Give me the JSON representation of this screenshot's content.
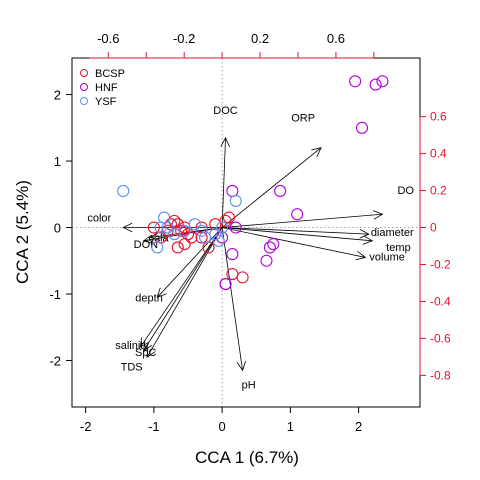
{
  "chart_data": {
    "type": "scatter",
    "title": "",
    "xlabel": "CCA 1 (6.7%)",
    "ylabel": "CCA 2 (5.4%)",
    "xlim": [
      -2.2,
      2.9
    ],
    "ylim": [
      -2.7,
      2.55
    ],
    "x_ticks": [
      "-2",
      "-1",
      "0",
      "1",
      "2"
    ],
    "y_ticks": [
      "-2",
      "-1",
      "0",
      "1",
      "2"
    ],
    "biplot_axis_ticks": {
      "top": [
        "-0.6",
        "-0.2",
        "0.2",
        "0.6"
      ],
      "right": [
        "0.6",
        "0.4",
        "0.2",
        "0",
        "-0.2",
        "-0.4",
        "-0.6",
        "-0.8"
      ]
    },
    "legend": {
      "position": "top-left",
      "entries": [
        {
          "name": "BCSP",
          "color": "#e8112d"
        },
        {
          "name": "HNF",
          "color": "#b000e0"
        },
        {
          "name": "YSF",
          "color": "#5b8ff0"
        }
      ]
    },
    "series": [
      {
        "name": "BCSP",
        "color": "#e8112d",
        "points": [
          [
            -0.7,
            0.1
          ],
          [
            -0.75,
            0.05
          ],
          [
            -0.65,
            0.05
          ],
          [
            -0.55,
            0.0
          ],
          [
            -0.6,
            -0.05
          ],
          [
            -0.5,
            -0.1
          ],
          [
            -0.45,
            -0.15
          ],
          [
            -0.55,
            -0.25
          ],
          [
            -0.65,
            -0.3
          ],
          [
            -0.8,
            -0.05
          ],
          [
            -0.9,
            -0.15
          ],
          [
            -1.0,
            0.0
          ],
          [
            -0.3,
            -0.15
          ],
          [
            -0.2,
            -0.3
          ],
          [
            -0.1,
            0.05
          ],
          [
            -0.3,
            0.0
          ],
          [
            0.05,
            0.1
          ],
          [
            0.1,
            0.15
          ],
          [
            0.3,
            -0.75
          ],
          [
            0.15,
            -0.7
          ],
          [
            0.05,
            -0.85
          ]
        ]
      },
      {
        "name": "HNF",
        "color": "#b000e0",
        "points": [
          [
            2.05,
            1.5
          ],
          [
            1.95,
            2.2
          ],
          [
            2.35,
            2.2
          ],
          [
            2.25,
            2.15
          ],
          [
            0.85,
            0.55
          ],
          [
            0.15,
            0.55
          ],
          [
            1.1,
            0.2
          ],
          [
            0.75,
            -0.25
          ],
          [
            0.7,
            -0.3
          ],
          [
            0.65,
            -0.5
          ],
          [
            0.15,
            -0.4
          ],
          [
            0.0,
            -0.15
          ],
          [
            0.05,
            -0.85
          ],
          [
            0.2,
            0.0
          ]
        ]
      },
      {
        "name": "YSF",
        "color": "#5b8ff0",
        "points": [
          [
            -1.45,
            0.55
          ],
          [
            -0.85,
            0.15
          ],
          [
            -0.9,
            0.0
          ],
          [
            -0.95,
            -0.3
          ],
          [
            -0.8,
            0.0
          ],
          [
            -0.7,
            -0.1
          ],
          [
            -0.4,
            0.05
          ],
          [
            -0.3,
            -0.05
          ],
          [
            -0.25,
            -0.15
          ],
          [
            -0.1,
            -0.1
          ],
          [
            -0.05,
            -0.2
          ],
          [
            -0.55,
            -0.05
          ],
          [
            0.2,
            0.4
          ],
          [
            0.0,
            0.0
          ]
        ]
      }
    ],
    "vectors": [
      {
        "label": "DOC",
        "x": 0.05,
        "y": 1.35
      },
      {
        "label": "ORP",
        "x": 1.45,
        "y": 1.2
      },
      {
        "label": "DO",
        "x": 2.35,
        "y": 0.2
      },
      {
        "label": "diameter",
        "x": 2.15,
        "y": -0.1
      },
      {
        "label": "temp",
        "x": 2.2,
        "y": -0.2
      },
      {
        "label": "volume",
        "x": 2.1,
        "y": -0.45
      },
      {
        "label": "color",
        "x": -1.45,
        "y": 0.0
      },
      {
        "label": "chla",
        "x": -1.05,
        "y": -0.15
      },
      {
        "label": "DON",
        "x": -1.15,
        "y": -0.2
      },
      {
        "label": "depth",
        "x": -0.95,
        "y": -1.05
      },
      {
        "label": "salinity",
        "x": -1.2,
        "y": -1.8
      },
      {
        "label": "SpC",
        "x": -1.1,
        "y": -1.95
      },
      {
        "label": "TDS",
        "x": -1.15,
        "y": -1.85
      },
      {
        "label": "pH",
        "x": 0.3,
        "y": -2.15
      }
    ]
  }
}
